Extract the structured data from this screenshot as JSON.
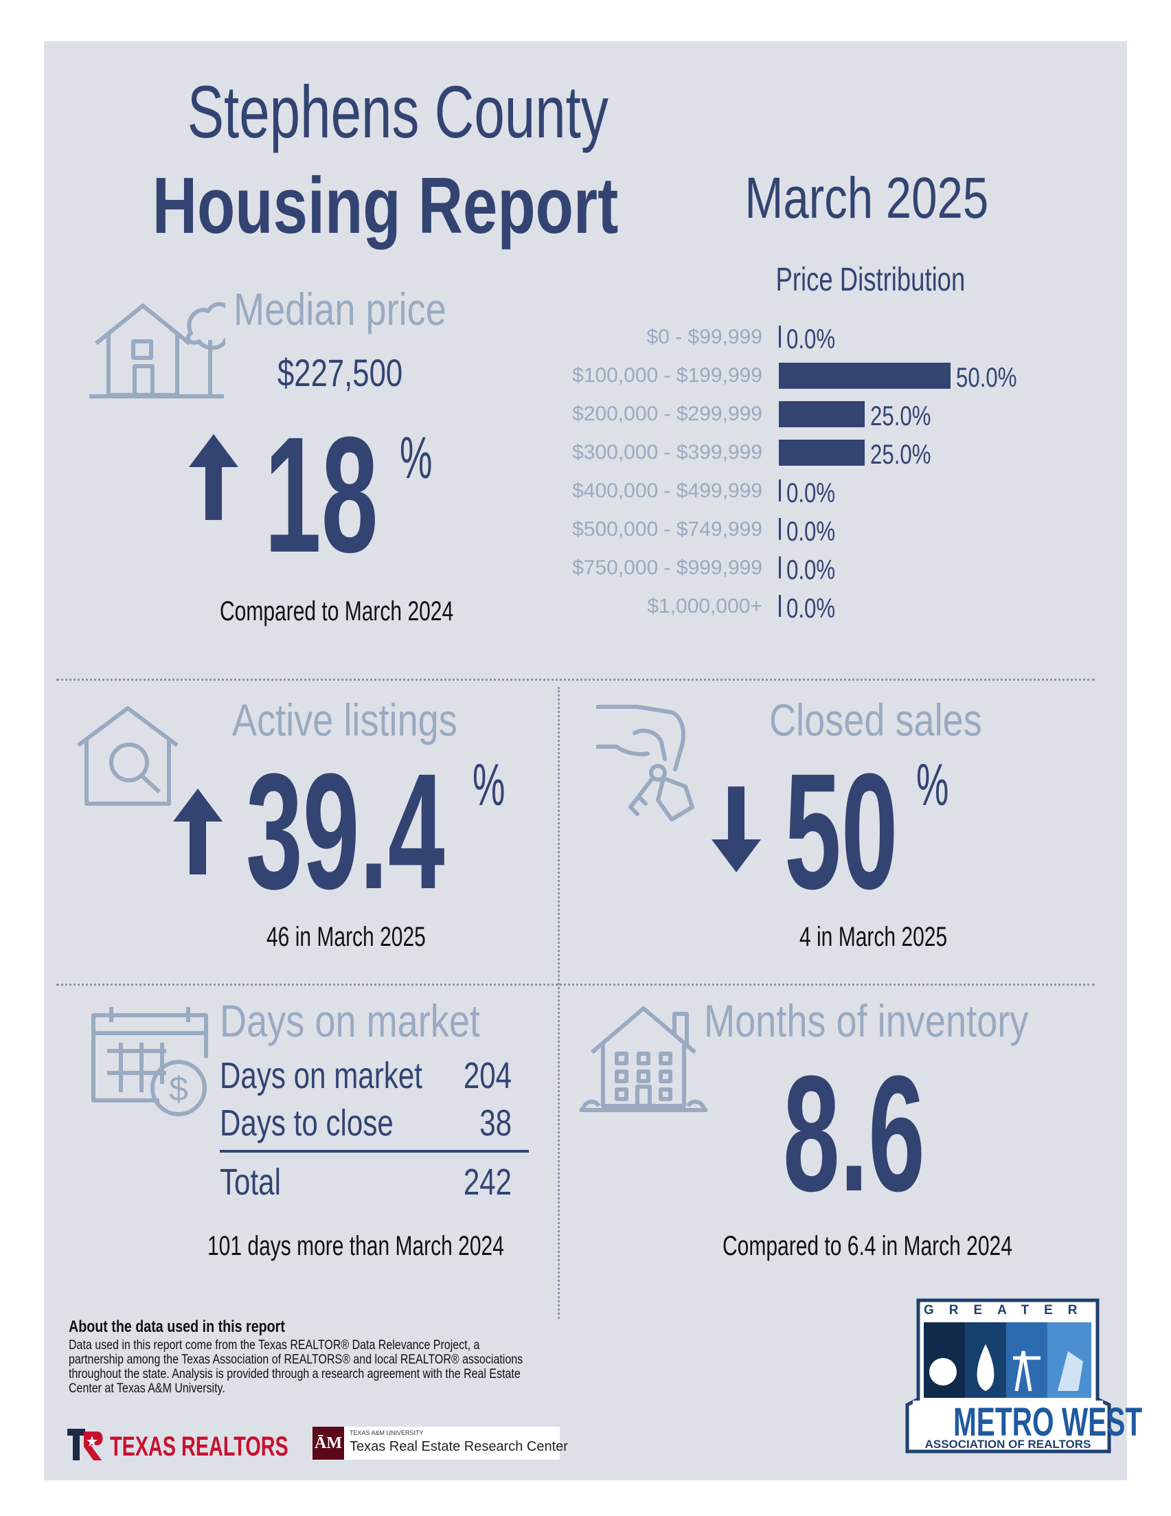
{
  "header": {
    "title_line1": "Stephens County",
    "title_line2": "Housing Report",
    "month": "March 2025"
  },
  "median_price": {
    "heading": "Median price",
    "value": "$227,500",
    "change": "18",
    "percent_sign": "%",
    "direction": "up",
    "caption": "Compared to March 2024"
  },
  "price_distribution": {
    "title": "Price Distribution",
    "rows": [
      {
        "label": "$0 - $99,999",
        "pct_text": "0.0%",
        "pct": 0.0
      },
      {
        "label": "$100,000 - $199,999",
        "pct_text": "50.0%",
        "pct": 50.0
      },
      {
        "label": "$200,000 - $299,999",
        "pct_text": "25.0%",
        "pct": 25.0
      },
      {
        "label": "$300,000 - $399,999",
        "pct_text": "25.0%",
        "pct": 25.0
      },
      {
        "label": "$400,000 - $499,999",
        "pct_text": "0.0%",
        "pct": 0.0
      },
      {
        "label": "$500,000 - $749,999",
        "pct_text": "0.0%",
        "pct": 0.0
      },
      {
        "label": "$750,000 - $999,999",
        "pct_text": "0.0%",
        "pct": 0.0
      },
      {
        "label": "$1,000,000+",
        "pct_text": "0.0%",
        "pct": 0.0
      }
    ]
  },
  "active_listings": {
    "heading": "Active listings",
    "change": "39.4",
    "percent_sign": "%",
    "direction": "up",
    "caption": "46 in March 2025"
  },
  "closed_sales": {
    "heading": "Closed sales",
    "change": "50",
    "percent_sign": "%",
    "direction": "down",
    "caption": "4 in March 2025"
  },
  "days_on_market": {
    "heading": "Days on market",
    "rows": [
      {
        "label": "Days on market",
        "value": "204"
      },
      {
        "label": "Days to close",
        "value": "38"
      }
    ],
    "total_label": "Total",
    "total_value": "242",
    "caption": "101 days more than March 2024"
  },
  "months_inventory": {
    "heading": "Months of inventory",
    "value": "8.6",
    "caption": "Compared to 6.4 in March 2024"
  },
  "about": {
    "heading": "About the data used in this report",
    "body": "Data used in this report come from the Texas REALTOR® Data Relevance Project, a partnership among the Texas Association of REALTORS® and local REALTOR® associations throughout the state. Analysis is provided through a research agreement with the Real Estate Center at Texas A&M University."
  },
  "logos": {
    "texas_realtors": "TEXAS REALTORS",
    "tamu_small": "TEXAS A&M UNIVERSITY",
    "tamu_center": "Texas Real Estate Research Center",
    "metro_top": "GREATER",
    "metro_main": "METRO WEST",
    "metro_sub": "ASSOCIATION OF REALTORS"
  },
  "colors": {
    "navy": "#334472",
    "slate": "#9aaac0",
    "background": "#dde0e7"
  }
}
